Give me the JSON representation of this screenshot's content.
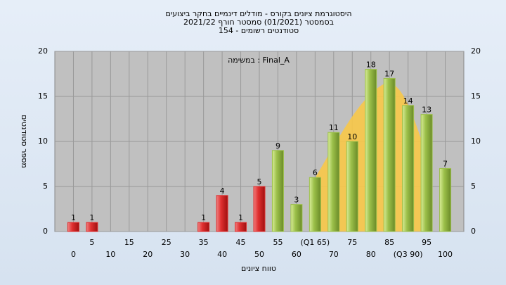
{
  "chart_data": {
    "type": "histogram",
    "title_lines": [
      "היסטוגרמת ציונים בקורס - מודלים דינמיים בחקר ביצועים",
      "בסמסטר  (01/2021)  סמסטר חורף 2021/22",
      "סטודנטים רשומים - 154"
    ],
    "annotation": "במשימה : Final_A",
    "x_label": "טווח ציונים",
    "y_label": "מספר סטודנטים",
    "x": [
      0,
      5,
      10,
      15,
      20,
      25,
      30,
      35,
      40,
      45,
      50,
      55,
      60,
      65,
      70,
      75,
      80,
      85,
      90,
      95,
      100
    ],
    "values": [
      1,
      1,
      0,
      0,
      0,
      0,
      0,
      1,
      4,
      1,
      5,
      9,
      3,
      6,
      11,
      10,
      18,
      17,
      14,
      13,
      7
    ],
    "colors": {
      "fail": "#e03030",
      "pass": "#9cc04a"
    },
    "pass_threshold": 55,
    "xlim": [
      -5,
      105
    ],
    "xticks": [
      0,
      5,
      10,
      15,
      20,
      25,
      30,
      35,
      40,
      45,
      50,
      55,
      60,
      {
        "value": 65,
        "label": "(Q1 65)"
      },
      70,
      75,
      80,
      85,
      {
        "value": 90,
        "label": "(Q3 90)"
      },
      95,
      100
    ],
    "ylim": [
      0,
      20
    ],
    "yticks": [
      0,
      5,
      10,
      15,
      20
    ],
    "grid": true
  }
}
